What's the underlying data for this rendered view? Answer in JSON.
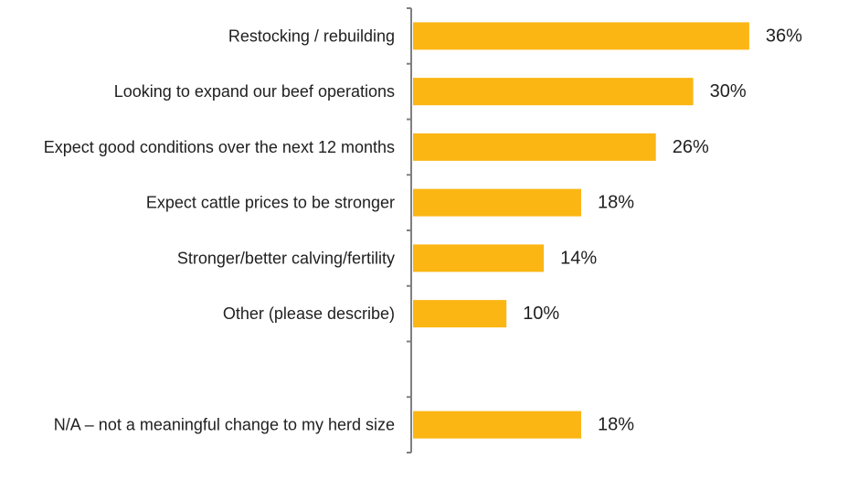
{
  "chart_data": {
    "type": "bar",
    "orientation": "horizontal",
    "title": "",
    "xlabel": "",
    "ylabel": "",
    "categories": [
      "Restocking / rebuilding",
      "Looking to expand our beef operations",
      "Expect good conditions over the next 12 months",
      "Expect cattle prices to be stronger",
      "Stronger/better calving/fertility",
      "Other (please describe)",
      "",
      "N/A – not a meaningful change to my herd size"
    ],
    "values": [
      36,
      30,
      26,
      18,
      14,
      10,
      null,
      18
    ],
    "value_labels": [
      "36%",
      "30%",
      "26%",
      "18%",
      "14%",
      "10%",
      "",
      "18%"
    ],
    "unit": "%",
    "xlim": [
      0,
      40
    ],
    "grid": false,
    "legend": "none",
    "bar_color": "#FBB614",
    "axis_color": "#7f7f7f"
  }
}
